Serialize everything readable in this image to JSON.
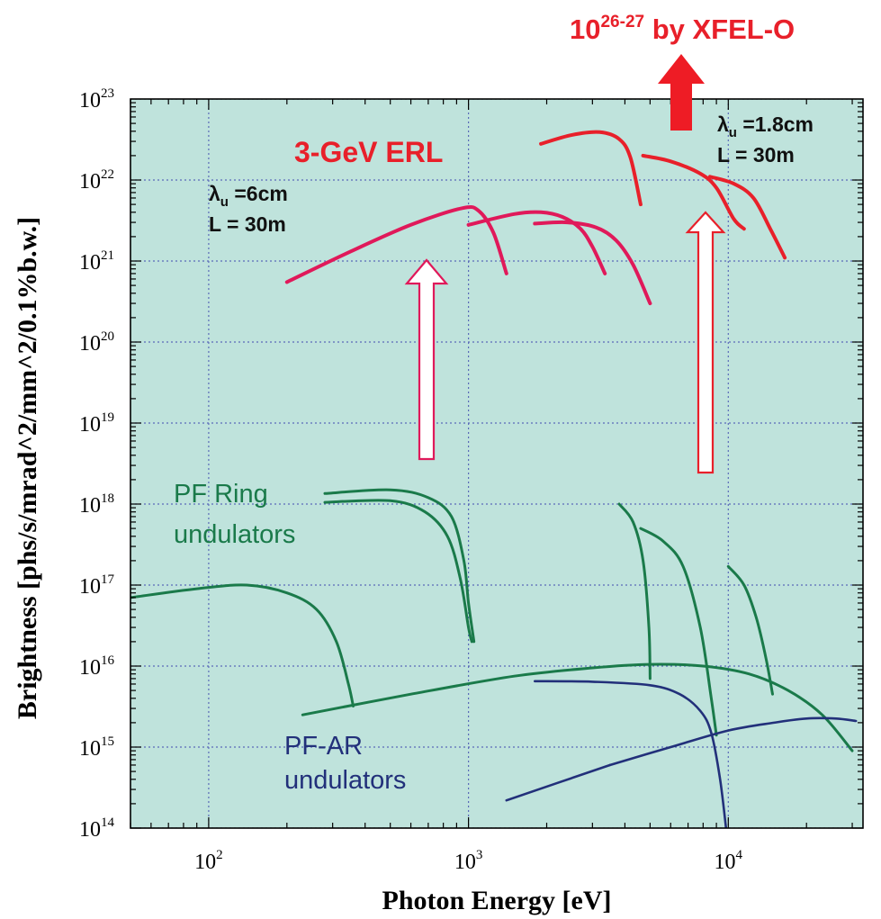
{
  "chart_data": {
    "type": "line",
    "xlabel": "Photon Energy [eV]",
    "ylabel": "Brightness [phs/s/mrad^2/mm^2/0.1%b.w.]",
    "x_scale": "log",
    "y_scale": "log",
    "xlim": [
      50,
      33000
    ],
    "ylim": [
      100000000000000.0,
      1e+23
    ],
    "x_ticks": [
      {
        "value": 100,
        "base": "10",
        "exp": "2"
      },
      {
        "value": 1000,
        "base": "10",
        "exp": "3"
      },
      {
        "value": 10000,
        "base": "10",
        "exp": "4"
      }
    ],
    "y_ticks": [
      {
        "value": 100000000000000.0,
        "base": "10",
        "exp": "14"
      },
      {
        "value": 1000000000000000.0,
        "base": "10",
        "exp": "15"
      },
      {
        "value": 1e+16,
        "base": "10",
        "exp": "16"
      },
      {
        "value": 1e+17,
        "base": "10",
        "exp": "17"
      },
      {
        "value": 1e+18,
        "base": "10",
        "exp": "18"
      },
      {
        "value": 1e+19,
        "base": "10",
        "exp": "19"
      },
      {
        "value": 1e+20,
        "base": "10",
        "exp": "20"
      },
      {
        "value": 1e+21,
        "base": "10",
        "exp": "21"
      },
      {
        "value": 1e+22,
        "base": "10",
        "exp": "22"
      },
      {
        "value": 1e+23,
        "base": "10",
        "exp": "23"
      }
    ],
    "grid": true,
    "background_color": "#bfe3dc",
    "colors": {
      "erl_long": "#e0195a",
      "erl_short": "#e8202a",
      "pf_ring": "#1a7a4a",
      "pf_ar": "#22307a",
      "arrow_red": "#ee1c25",
      "annotation_red": "#e8202a",
      "annotation_green": "#1a7a4a",
      "annotation_blue": "#22307a"
    },
    "series": [
      {
        "group": "erl_long",
        "points": [
          [
            200,
            5.5e+20
          ],
          [
            350,
            1.3e+21
          ],
          [
            600,
            2.8e+21
          ],
          [
            950,
            4.5e+21
          ],
          [
            1100,
            4.1e+21
          ],
          [
            1250,
            2.2e+21
          ],
          [
            1400,
            7e+20
          ]
        ]
      },
      {
        "group": "erl_long",
        "points": [
          [
            1000,
            2.8e+21
          ],
          [
            1500,
            3.8e+21
          ],
          [
            1900,
            4e+21
          ],
          [
            2300,
            3.5e+21
          ],
          [
            2700,
            2.5e+21
          ],
          [
            3000,
            1.5e+21
          ],
          [
            3350,
            7e+20
          ]
        ]
      },
      {
        "group": "erl_long",
        "points": [
          [
            1800,
            2.9e+21
          ],
          [
            2400,
            3e+21
          ],
          [
            3100,
            2.6e+21
          ],
          [
            3700,
            1.8e+21
          ],
          [
            4300,
            9e+20
          ],
          [
            5000,
            3e+20
          ]
        ]
      },
      {
        "group": "erl_short",
        "points": [
          [
            1900,
            2.8e+22
          ],
          [
            2500,
            3.6e+22
          ],
          [
            3200,
            3.9e+22
          ],
          [
            3800,
            3.2e+22
          ],
          [
            4200,
            1.9e+22
          ],
          [
            4600,
            5e+21
          ]
        ]
      },
      {
        "group": "erl_short",
        "points": [
          [
            4700,
            2e+22
          ],
          [
            6000,
            1.7e+22
          ],
          [
            7800,
            1.2e+22
          ],
          [
            9000,
            8e+21
          ],
          [
            10500,
            3.3e+21
          ],
          [
            11500,
            2.5e+21
          ]
        ]
      },
      {
        "group": "erl_short",
        "points": [
          [
            8500,
            1.1e+22
          ],
          [
            10500,
            9e+21
          ],
          [
            12500,
            6e+21
          ],
          [
            14500,
            2.5e+21
          ],
          [
            16500,
            1.1e+21
          ]
        ]
      },
      {
        "group": "pf_ring",
        "points": [
          [
            50,
            7e+16
          ],
          [
            90,
            9e+16
          ],
          [
            140,
            1e+17
          ],
          [
            200,
            8e+16
          ],
          [
            260,
            5e+16
          ],
          [
            310,
            2e+16
          ],
          [
            345,
            6000000000000000.0
          ],
          [
            360,
            3200000000000000.0
          ]
        ]
      },
      {
        "group": "pf_ring",
        "points": [
          [
            280,
            1.35e+18
          ],
          [
            500,
            1.5e+18
          ],
          [
            700,
            1.2e+18
          ],
          [
            860,
            7e+17
          ],
          [
            960,
            2e+17
          ],
          [
            1000,
            6e+16
          ],
          [
            1050,
            2e+16
          ]
        ]
      },
      {
        "group": "pf_ring",
        "points": [
          [
            280,
            1.05e+18
          ],
          [
            500,
            1.1e+18
          ],
          [
            680,
            8e+17
          ],
          [
            830,
            4e+17
          ],
          [
            930,
            1.2e+17
          ],
          [
            1000,
            3e+16
          ],
          [
            1030,
            2e+16
          ]
        ]
      },
      {
        "group": "pf_ring",
        "points": [
          [
            3800,
            1e+18
          ],
          [
            4300,
            6e+17
          ],
          [
            4700,
            2e+17
          ],
          [
            4950,
            3e+16
          ],
          [
            5000,
            7000000000000000.0
          ]
        ]
      },
      {
        "group": "pf_ring",
        "points": [
          [
            4600,
            5e+17
          ],
          [
            5600,
            3.5e+17
          ],
          [
            6700,
            1.7e+17
          ],
          [
            7800,
            3e+16
          ],
          [
            8600,
            4000000000000000.0
          ],
          [
            9000,
            1400000000000000.0
          ]
        ]
      },
      {
        "group": "pf_ring",
        "points": [
          [
            10000,
            1.7e+17
          ],
          [
            11500,
            1e+17
          ],
          [
            12800,
            4e+16
          ],
          [
            14000,
            1.2e+16
          ],
          [
            14800,
            4500000000000000.0
          ]
        ]
      },
      {
        "group": "pf_ring",
        "points": [
          [
            230,
            2500000000000000.0
          ],
          [
            600,
            4500000000000000.0
          ],
          [
            1500,
            7500000000000000.0
          ],
          [
            3000,
            9500000000000000.0
          ],
          [
            5000,
            1.05e+16
          ],
          [
            8000,
            1e+16
          ],
          [
            12000,
            8000000000000000.0
          ],
          [
            17000,
            5000000000000000.0
          ],
          [
            23000,
            2500000000000000.0
          ],
          [
            30000,
            900000000000000.0
          ]
        ]
      },
      {
        "group": "pf_ar",
        "points": [
          [
            1800,
            6500000000000000.0
          ],
          [
            3000,
            6400000000000000.0
          ],
          [
            5000,
            5800000000000000.0
          ],
          [
            6500,
            4500000000000000.0
          ],
          [
            7800,
            2800000000000000.0
          ],
          [
            8600,
            1500000000000000.0
          ],
          [
            9300,
            400000000000000.0
          ],
          [
            9800,
            100000000000000.0
          ]
        ]
      },
      {
        "group": "pf_ar",
        "points": [
          [
            3500,
            600000000000000.0
          ],
          [
            6000,
            1000000000000000.0
          ],
          [
            10000,
            1600000000000000.0
          ],
          [
            15000,
            2000000000000000.0
          ],
          [
            20000,
            2250000000000000.0
          ],
          [
            26000,
            2250000000000000.0
          ],
          [
            31000,
            2100000000000000.0
          ]
        ]
      },
      {
        "group": "pf_ar",
        "points": [
          [
            1400,
            220000000000000.0
          ],
          [
            3500,
            600000000000000.0
          ]
        ]
      }
    ],
    "annotations": {
      "xfel_label": {
        "base": "10",
        "sup": "26-27",
        "rest": " by XFEL-O"
      },
      "erl_label": "3-GeV ERL",
      "lambda_long": {
        "lambda_sym": "λ",
        "sub": "u",
        "rest": " =6cm",
        "l_line": "L = 30m"
      },
      "lambda_short": {
        "lambda_sym": "λ",
        "sub": "u",
        "rest": " =1.8cm",
        "l_line": "L = 30m"
      },
      "pf_ring_line1": "PF Ring",
      "pf_ring_line2": "undulators",
      "pf_ar_line1": "PF-AR",
      "pf_ar_line2": "undulators"
    }
  }
}
